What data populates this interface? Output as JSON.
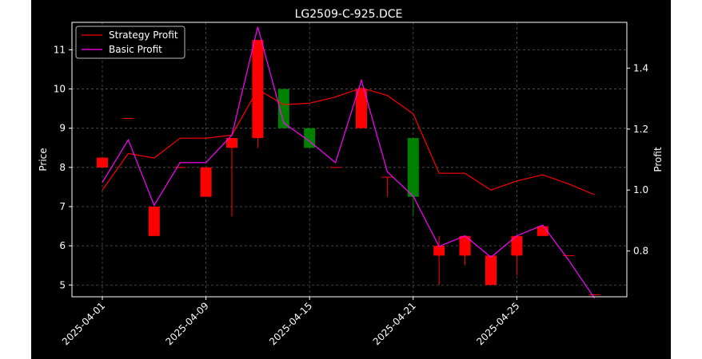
{
  "chart_data": {
    "type": "candlestick+line",
    "title": "LG2509-C-925.DCE",
    "ylabel": "Price",
    "y2label": "Profit",
    "ylim": [
      4.7,
      11.7
    ],
    "y2lim": [
      0.65,
      1.55
    ],
    "yticks": [
      5,
      6,
      7,
      8,
      9,
      10,
      11
    ],
    "y2ticks": [
      0.8,
      1.0,
      1.2,
      1.4
    ],
    "xticks": [
      {
        "i": 0,
        "label": "2025-04-01"
      },
      {
        "i": 4,
        "label": "2025-04-09"
      },
      {
        "i": 8,
        "label": "2025-04-15"
      },
      {
        "i": 12,
        "label": "2025-04-21"
      },
      {
        "i": 16,
        "label": "2025-04-25"
      }
    ],
    "grid": true,
    "legend_location": "top-left",
    "colors": {
      "up": "#ff0000",
      "down": "#008000",
      "strategy": "#ff0000",
      "basic": "#ff00ff",
      "grid": "#555555",
      "axis": "#ffffff"
    },
    "candles": [
      {
        "i": 0,
        "open": 8.0,
        "close": 8.25,
        "high": 8.25,
        "low": 8.0
      },
      {
        "i": 1,
        "open": 9.25,
        "close": 9.25,
        "high": 9.25,
        "low": 9.25
      },
      {
        "i": 2,
        "open": 6.25,
        "close": 7.0,
        "high": 7.0,
        "low": 6.25
      },
      {
        "i": 3,
        "open": 8.0,
        "close": 8.0,
        "high": 8.0,
        "low": 8.0
      },
      {
        "i": 4,
        "open": 7.25,
        "close": 8.0,
        "high": 8.0,
        "low": 7.25
      },
      {
        "i": 5,
        "open": 8.5,
        "close": 8.75,
        "high": 8.75,
        "low": 6.75
      },
      {
        "i": 6,
        "open": 8.75,
        "close": 11.25,
        "high": 11.25,
        "low": 8.5
      },
      {
        "i": 7,
        "open": 10.0,
        "close": 9.0,
        "high": 10.0,
        "low": 9.0
      },
      {
        "i": 8,
        "open": 9.0,
        "close": 8.5,
        "high": 9.0,
        "low": 8.5
      },
      {
        "i": 9,
        "open": 8.0,
        "close": 8.0,
        "high": 8.0,
        "low": 8.0
      },
      {
        "i": 10,
        "open": 9.0,
        "close": 10.0,
        "high": 10.0,
        "low": 9.0
      },
      {
        "i": 11,
        "open": 7.75,
        "close": 7.75,
        "high": 7.75,
        "low": 7.25
      },
      {
        "i": 12,
        "open": 8.75,
        "close": 7.25,
        "high": 8.75,
        "low": 6.75
      },
      {
        "i": 13,
        "open": 5.75,
        "close": 6.0,
        "high": 6.25,
        "low": 5.0
      },
      {
        "i": 14,
        "open": 5.75,
        "close": 6.25,
        "high": 6.25,
        "low": 5.5
      },
      {
        "i": 15,
        "open": 5.0,
        "close": 5.75,
        "high": 5.75,
        "low": 5.0
      },
      {
        "i": 16,
        "open": 5.75,
        "close": 6.25,
        "high": 6.25,
        "low": 5.25
      },
      {
        "i": 17,
        "open": 6.25,
        "close": 6.5,
        "high": 6.5,
        "low": 6.25
      },
      {
        "i": 18,
        "open": 5.75,
        "close": 5.75,
        "high": 5.75,
        "low": 5.75
      },
      {
        "i": 19,
        "open": 4.75,
        "close": 4.75,
        "high": 4.75,
        "low": 4.75
      }
    ],
    "series": [
      {
        "name": "Strategy Profit",
        "color": "#ff0000",
        "values": [
          1.0,
          1.12,
          1.105,
          1.17,
          1.17,
          1.18,
          1.33,
          1.28,
          1.285,
          1.305,
          1.335,
          1.31,
          1.25,
          1.055,
          1.055,
          1.0,
          1.03,
          1.05,
          1.02,
          0.985
        ]
      },
      {
        "name": "Basic Profit",
        "color": "#ff00ff",
        "values": [
          1.025,
          1.165,
          0.95,
          1.09,
          1.09,
          1.18,
          1.535,
          1.22,
          1.16,
          1.09,
          1.36,
          1.06,
          0.98,
          0.815,
          0.85,
          0.78,
          0.85,
          0.885,
          0.77,
          0.645
        ]
      }
    ]
  }
}
